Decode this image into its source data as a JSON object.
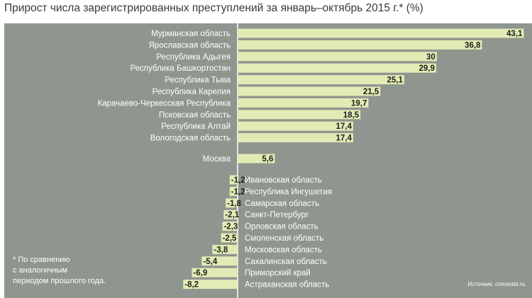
{
  "chart_data": {
    "type": "bar",
    "orientation": "horizontal",
    "title": "Прирост числа зарегистрированных преступлений за январь–октябрь 2015 г.* (%)",
    "groups": [
      {
        "name": "top",
        "bars": [
          {
            "category": "Мурманская область",
            "value": 43.1,
            "label": "43,1"
          },
          {
            "category": "Ярославская область",
            "value": 36.8,
            "label": "36,8"
          },
          {
            "category": "Республика Адыгея",
            "value": 30,
            "label": "30"
          },
          {
            "category": "Республика Башкортостан",
            "value": 29.9,
            "label": "29,9"
          },
          {
            "category": "Республика Тыва",
            "value": 25.1,
            "label": "25,1"
          },
          {
            "category": "Республика Карелия",
            "value": 21.5,
            "label": "21,5"
          },
          {
            "category": "Карачаево-Черкесская Республика",
            "value": 19.7,
            "label": "19,7"
          },
          {
            "category": "Псковская область",
            "value": 18.5,
            "label": "18,5"
          },
          {
            "category": "Республика Алтай",
            "value": 17.4,
            "label": "17,4"
          },
          {
            "category": "Вологодская область",
            "value": 17.4,
            "label": "17,4"
          }
        ]
      },
      {
        "name": "moscow",
        "bars": [
          {
            "category": "Москва",
            "value": 5.6,
            "label": "5,6"
          }
        ]
      },
      {
        "name": "bottom",
        "bars": [
          {
            "category": "Ивановская область",
            "value": -1.2,
            "label": "-1,2"
          },
          {
            "category": "Республика Ингушетия",
            "value": -1.2,
            "label": "-1,2"
          },
          {
            "category": "Самарская область",
            "value": -1.8,
            "label": "-1,8"
          },
          {
            "category": "Санкт-Петербург",
            "value": -2.1,
            "label": "-2,1"
          },
          {
            "category": "Орловская область",
            "value": -2.3,
            "label": "-2,3"
          },
          {
            "category": "Смоленская область",
            "value": -2.5,
            "label": "-2,5"
          },
          {
            "category": "Московская область",
            "value": -3.8,
            "label": "-3,8"
          },
          {
            "category": "Сахалинская область",
            "value": -5.4,
            "label": "-5,4"
          },
          {
            "category": "Приморский край",
            "value": -6.9,
            "label": "-6,9"
          },
          {
            "category": "Астраханская область",
            "value": -8.2,
            "label": "-8,2"
          }
        ]
      }
    ],
    "footnote": [
      "* По сравнению",
      "с аналогичным",
      "периодом прошлого года."
    ],
    "source": "Источник: crimestat.ru.",
    "colors": {
      "bar": "#e2ebb4",
      "background": "#8f9690",
      "axis": "#ffffff",
      "value_text": "#1e1e1e",
      "label_text": "#ffffff",
      "title_text": "#3a3a3a"
    }
  }
}
